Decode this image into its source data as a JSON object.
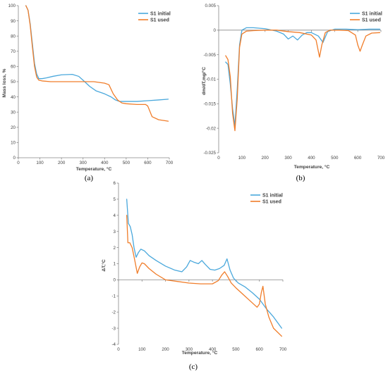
{
  "colors": {
    "initial": "#4aa8dc",
    "used": "#f07d2a"
  },
  "chart_data": [
    {
      "panel": "(a)",
      "type": "line",
      "xlabel": "Temperature, °C",
      "ylabel": "Mass loss, %",
      "xlim": [
        0,
        700
      ],
      "ylim": [
        0,
        100
      ],
      "xticks": [
        "0",
        "100",
        "200",
        "300",
        "400",
        "500",
        "600",
        "700"
      ],
      "yticks": [
        "0",
        "10",
        "20",
        "30",
        "40",
        "50",
        "60",
        "70",
        "80",
        "90",
        "100"
      ],
      "legend_position": "top-right",
      "series": [
        {
          "name": "S1 initial",
          "color_key": "initial",
          "x": [
            35,
            45,
            55,
            65,
            75,
            85,
            95,
            110,
            130,
            160,
            200,
            250,
            280,
            300,
            330,
            360,
            400,
            430,
            450,
            470,
            500,
            550,
            600,
            650,
            695
          ],
          "y": [
            100,
            97,
            88,
            75,
            62,
            55,
            52,
            52,
            52.5,
            53.5,
            54.5,
            54.8,
            53.5,
            51,
            47,
            44,
            42,
            40,
            38,
            37,
            37,
            37,
            37.5,
            38,
            38.5
          ]
        },
        {
          "name": "S1 used",
          "color_key": "used",
          "x": [
            35,
            45,
            55,
            65,
            75,
            85,
            95,
            110,
            150,
            200,
            250,
            300,
            350,
            400,
            420,
            440,
            460,
            480,
            500,
            550,
            590,
            600,
            620,
            650,
            695
          ],
          "y": [
            100,
            97,
            87,
            73,
            60,
            53,
            51,
            50.5,
            50,
            50,
            50,
            50,
            50,
            49,
            48,
            42,
            38,
            36,
            35.5,
            35,
            35,
            34,
            27,
            25,
            24
          ]
        }
      ]
    },
    {
      "panel": "(b)",
      "type": "line",
      "xlabel": "Temperature, °C",
      "ylabel": "dm/dT,mg/°C",
      "xlim": [
        0,
        700
      ],
      "ylim": [
        -0.025,
        0.005
      ],
      "xticks": [
        "0",
        "100",
        "200",
        "300",
        "400",
        "500",
        "600",
        "700"
      ],
      "yticks": [
        "-0.025",
        "-0.02",
        "-0.015",
        "-0.01",
        "-0.005",
        "0",
        "0.005"
      ],
      "legend_position": "top-right",
      "series": [
        {
          "name": "S1 initial",
          "color_key": "initial",
          "x": [
            30,
            40,
            50,
            60,
            70,
            80,
            90,
            100,
            120,
            150,
            200,
            250,
            280,
            300,
            320,
            340,
            360,
            380,
            400,
            430,
            450,
            470,
            500,
            550,
            600,
            650,
            695
          ],
          "y": [
            -0.0065,
            -0.007,
            -0.011,
            -0.016,
            -0.0195,
            -0.012,
            -0.003,
            0.0,
            0.0005,
            0.0005,
            0.0003,
            -0.0002,
            -0.0008,
            -0.0018,
            -0.0012,
            -0.002,
            -0.001,
            -0.0005,
            -0.0005,
            -0.0012,
            -0.0025,
            -0.0003,
            0.0002,
            0.0002,
            0.0001,
            0.0002,
            0.0002
          ]
        },
        {
          "name": "S1 used",
          "color_key": "used",
          "x": [
            30,
            40,
            50,
            60,
            70,
            80,
            90,
            100,
            120,
            150,
            200,
            250,
            300,
            350,
            400,
            420,
            435,
            445,
            460,
            480,
            520,
            560,
            590,
            600,
            610,
            620,
            635,
            660,
            695
          ],
          "y": [
            -0.0052,
            -0.006,
            -0.0095,
            -0.017,
            -0.0205,
            -0.014,
            -0.0035,
            -0.0008,
            -0.0002,
            -0.0001,
            0.0,
            0.0,
            -0.0003,
            -0.0005,
            -0.001,
            -0.002,
            -0.0055,
            -0.003,
            -0.0005,
            0.0,
            0.0,
            -0.0001,
            -0.001,
            -0.003,
            -0.0043,
            -0.003,
            -0.0012,
            -0.0006,
            -0.0005
          ]
        }
      ]
    },
    {
      "panel": "(c)",
      "type": "line",
      "xlabel": "Temperature, °C",
      "ylabel": "ΔT,°C",
      "xlim": [
        0,
        700
      ],
      "ylim": [
        -4,
        6
      ],
      "xticks": [
        "0",
        "100",
        "200",
        "300",
        "400",
        "500",
        "600",
        "700"
      ],
      "yticks": [
        "-4",
        "-3",
        "-2",
        "-1",
        "0",
        "1",
        "2",
        "3",
        "4",
        "5",
        "6"
      ],
      "legend_position": "top-right",
      "series": [
        {
          "name": "S1 initial",
          "color_key": "initial",
          "x": [
            35,
            42,
            50,
            58,
            66,
            75,
            85,
            95,
            110,
            130,
            160,
            200,
            240,
            270,
            290,
            305,
            320,
            340,
            355,
            370,
            390,
            410,
            430,
            450,
            462,
            475,
            490,
            510,
            540,
            570,
            600,
            630,
            660,
            695
          ],
          "y": [
            5.0,
            3.5,
            3.3,
            2.8,
            2.0,
            1.4,
            1.7,
            1.9,
            1.8,
            1.5,
            1.2,
            0.85,
            0.6,
            0.5,
            0.8,
            1.2,
            1.1,
            1.0,
            1.2,
            0.95,
            0.65,
            0.6,
            0.7,
            0.9,
            1.3,
            0.6,
            0.1,
            -0.2,
            -0.45,
            -0.8,
            -1.2,
            -1.8,
            -2.3,
            -3.0
          ]
        },
        {
          "name": "S1 used",
          "color_key": "used",
          "x": [
            35,
            40,
            48,
            58,
            68,
            80,
            90,
            100,
            110,
            130,
            160,
            200,
            250,
            300,
            350,
            400,
            425,
            440,
            452,
            465,
            480,
            500,
            530,
            560,
            590,
            600,
            608,
            615,
            625,
            640,
            660,
            695
          ],
          "y": [
            4.0,
            2.3,
            2.3,
            2.0,
            1.3,
            0.4,
            0.8,
            1.05,
            1.0,
            0.7,
            0.35,
            0.0,
            -0.1,
            -0.2,
            -0.25,
            -0.25,
            -0.05,
            0.3,
            0.5,
            0.2,
            -0.2,
            -0.5,
            -0.9,
            -1.3,
            -1.7,
            -1.5,
            -0.8,
            -0.4,
            -1.5,
            -2.3,
            -3.0,
            -3.5
          ]
        }
      ]
    }
  ]
}
